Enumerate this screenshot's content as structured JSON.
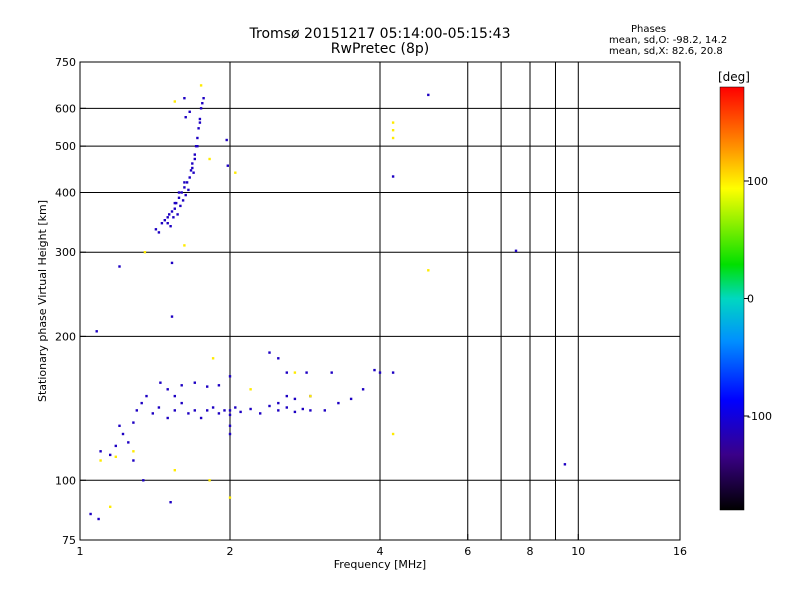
{
  "header": {
    "title": "Tromsø 20151217 05:14:00-05:15:43",
    "subtitle": "RwPretec (8p)",
    "phases_title": "Phases",
    "phases_o": "mean, sd,O: -98.2, 14.2",
    "phases_x": "mean, sd,X:  82.6, 20.8"
  },
  "colorbar": {
    "label": "[deg]",
    "ticks": [
      {
        "value": 100,
        "label": "100"
      },
      {
        "value": 0,
        "label": "0"
      },
      {
        "value": -100,
        "label": "-100"
      }
    ],
    "range": [
      -180,
      180
    ]
  },
  "chart_data": {
    "type": "scatter",
    "xlabel": "Frequency [MHz]",
    "ylabel": "Stationary phase Virtual Height [km]",
    "xscale": "log",
    "yscale": "log",
    "xlim": [
      1,
      16
    ],
    "ylim": [
      75,
      750
    ],
    "xticks": [
      {
        "value": 1,
        "label": "1"
      },
      {
        "value": 2,
        "label": "2"
      },
      {
        "value": 4,
        "label": "4"
      },
      {
        "value": 6,
        "label": "6"
      },
      {
        "value": 8,
        "label": "8"
      },
      {
        "value": 10,
        "label": "10"
      },
      {
        "value": 16,
        "label": "16"
      }
    ],
    "xgrid": [
      2,
      4,
      6,
      7,
      8,
      9,
      10
    ],
    "yticks": [
      {
        "value": 75,
        "label": "75"
      },
      {
        "value": 100,
        "label": "100"
      },
      {
        "value": 200,
        "label": "200"
      },
      {
        "value": 300,
        "label": "300"
      },
      {
        "value": 400,
        "label": "400"
      },
      {
        "value": 500,
        "label": "500"
      },
      {
        "value": 600,
        "label": "600"
      },
      {
        "value": 750,
        "label": "750"
      }
    ],
    "ygrid": [
      100,
      200,
      300,
      400,
      500,
      600
    ],
    "grid": true,
    "series": [
      {
        "points": [
          [
            1.42,
            335
          ],
          [
            1.44,
            330
          ],
          [
            1.46,
            345
          ],
          [
            1.48,
            350
          ],
          [
            1.5,
            345
          ],
          [
            1.51,
            360
          ],
          [
            1.52,
            340
          ],
          [
            1.53,
            365
          ],
          [
            1.54,
            355
          ],
          [
            1.55,
            370
          ],
          [
            1.56,
            380
          ],
          [
            1.57,
            360
          ],
          [
            1.58,
            390
          ],
          [
            1.59,
            375
          ],
          [
            1.6,
            400
          ],
          [
            1.61,
            385
          ],
          [
            1.62,
            410
          ],
          [
            1.63,
            395
          ],
          [
            1.64,
            420
          ],
          [
            1.65,
            405
          ],
          [
            1.66,
            430
          ],
          [
            1.67,
            445
          ],
          [
            1.68,
            460
          ],
          [
            1.69,
            440
          ],
          [
            1.7,
            480
          ],
          [
            1.71,
            500
          ],
          [
            1.72,
            520
          ],
          [
            1.73,
            545
          ],
          [
            1.74,
            570
          ],
          [
            1.75,
            600
          ],
          [
            1.76,
            615
          ],
          [
            1.77,
            630
          ],
          [
            1.74,
            560
          ],
          [
            1.72,
            500
          ],
          [
            1.7,
            470
          ],
          [
            1.68,
            450
          ],
          [
            1.62,
            420
          ],
          [
            1.58,
            400
          ],
          [
            1.55,
            380
          ],
          [
            1.5,
            355
          ],
          [
            1.63,
            575
          ],
          [
            1.66,
            590
          ],
          [
            1.62,
            630
          ],
          [
            1.2,
            280
          ],
          [
            1.53,
            285
          ],
          [
            1.53,
            220
          ],
          [
            1.97,
            515
          ],
          [
            1.98,
            455
          ],
          [
            1.08,
            205
          ],
          [
            1.05,
            85
          ],
          [
            1.09,
            83
          ],
          [
            1.28,
            110
          ],
          [
            1.34,
            100
          ],
          [
            1.52,
            90
          ],
          [
            1.28,
            132
          ],
          [
            1.3,
            140
          ],
          [
            1.33,
            145
          ],
          [
            1.36,
            150
          ],
          [
            1.4,
            138
          ],
          [
            1.44,
            142
          ],
          [
            1.5,
            135
          ],
          [
            1.55,
            140
          ],
          [
            1.6,
            145
          ],
          [
            1.65,
            138
          ],
          [
            1.7,
            140
          ],
          [
            1.75,
            135
          ],
          [
            1.8,
            140
          ],
          [
            1.85,
            142
          ],
          [
            1.9,
            138
          ],
          [
            1.95,
            140
          ],
          [
            2.0,
            137
          ],
          [
            2.05,
            142
          ],
          [
            2.1,
            139
          ],
          [
            2.2,
            141
          ],
          [
            2.3,
            138
          ],
          [
            2.4,
            143
          ],
          [
            2.5,
            140
          ],
          [
            2.6,
            142
          ],
          [
            2.7,
            139
          ],
          [
            2.8,
            141
          ],
          [
            2.9,
            140
          ],
          [
            1.45,
            160
          ],
          [
            1.5,
            155
          ],
          [
            1.55,
            150
          ],
          [
            1.6,
            158
          ],
          [
            1.7,
            160
          ],
          [
            1.8,
            157
          ],
          [
            1.9,
            158
          ],
          [
            2.0,
            140
          ],
          [
            2.0,
            165
          ],
          [
            2.0,
            130
          ],
          [
            2.0,
            125
          ],
          [
            2.5,
            145
          ],
          [
            2.6,
            150
          ],
          [
            2.7,
            148
          ],
          [
            2.9,
            150
          ],
          [
            1.2,
            130
          ],
          [
            1.22,
            125
          ],
          [
            1.25,
            120
          ],
          [
            1.15,
            113
          ],
          [
            1.1,
            115
          ],
          [
            1.18,
            118
          ],
          [
            3.2,
            168
          ],
          [
            3.3,
            145
          ],
          [
            3.5,
            148
          ],
          [
            3.9,
            170
          ],
          [
            4.0,
            168
          ],
          [
            4.25,
            432
          ],
          [
            4.25,
            168
          ],
          [
            3.7,
            155
          ],
          [
            9.4,
            108
          ],
          [
            7.5,
            302
          ],
          [
            5.0,
            640
          ],
          [
            2.6,
            168
          ],
          [
            2.4,
            185
          ],
          [
            2.5,
            180
          ],
          [
            2.85,
            168
          ],
          [
            3.1,
            140
          ]
        ],
        "phase": -110
      },
      {
        "points": [
          [
            4.25,
            560
          ],
          [
            4.25,
            540
          ],
          [
            4.25,
            520
          ],
          [
            4.25,
            125
          ],
          [
            5.0,
            275
          ],
          [
            1.75,
            670
          ],
          [
            1.82,
            470
          ],
          [
            1.85,
            180
          ],
          [
            1.62,
            310
          ],
          [
            1.55,
            620
          ],
          [
            1.1,
            110
          ],
          [
            1.18,
            112
          ],
          [
            1.28,
            115
          ],
          [
            1.15,
            88
          ],
          [
            1.55,
            105
          ],
          [
            1.82,
            100
          ],
          [
            2.0,
            92
          ],
          [
            2.2,
            155
          ],
          [
            2.7,
            168
          ],
          [
            2.9,
            150
          ],
          [
            2.05,
            440
          ],
          [
            1.35,
            300
          ]
        ],
        "phase": 100
      }
    ]
  }
}
